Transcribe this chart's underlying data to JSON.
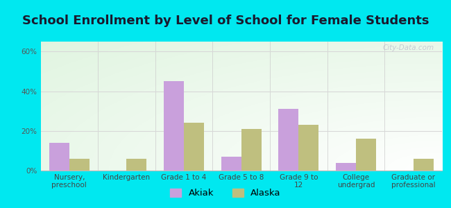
{
  "title": "School Enrollment by Level of School for Female Students",
  "categories": [
    "Nursery,\npreschool",
    "Kindergarten",
    "Grade 1 to 4",
    "Grade 5 to 8",
    "Grade 9 to\n12",
    "College\nundergrad",
    "Graduate or\nprofessional"
  ],
  "akiak": [
    14,
    0,
    45,
    7,
    31,
    4,
    0
  ],
  "alaska": [
    6,
    6,
    24,
    21,
    23,
    16,
    6
  ],
  "akiak_color": "#c9a0dc",
  "alaska_color": "#bfbf7f",
  "bar_width": 0.35,
  "ylim": [
    0,
    65
  ],
  "yticks": [
    0,
    20,
    40,
    60
  ],
  "ytick_labels": [
    "0%",
    "20%",
    "40%",
    "60%"
  ],
  "background_color": "#00e8f0",
  "title_fontsize": 13,
  "tick_fontsize": 7.5,
  "legend_fontsize": 9.5,
  "grid_color": "#d8d8d8",
  "watermark_text": "City-Data.com"
}
